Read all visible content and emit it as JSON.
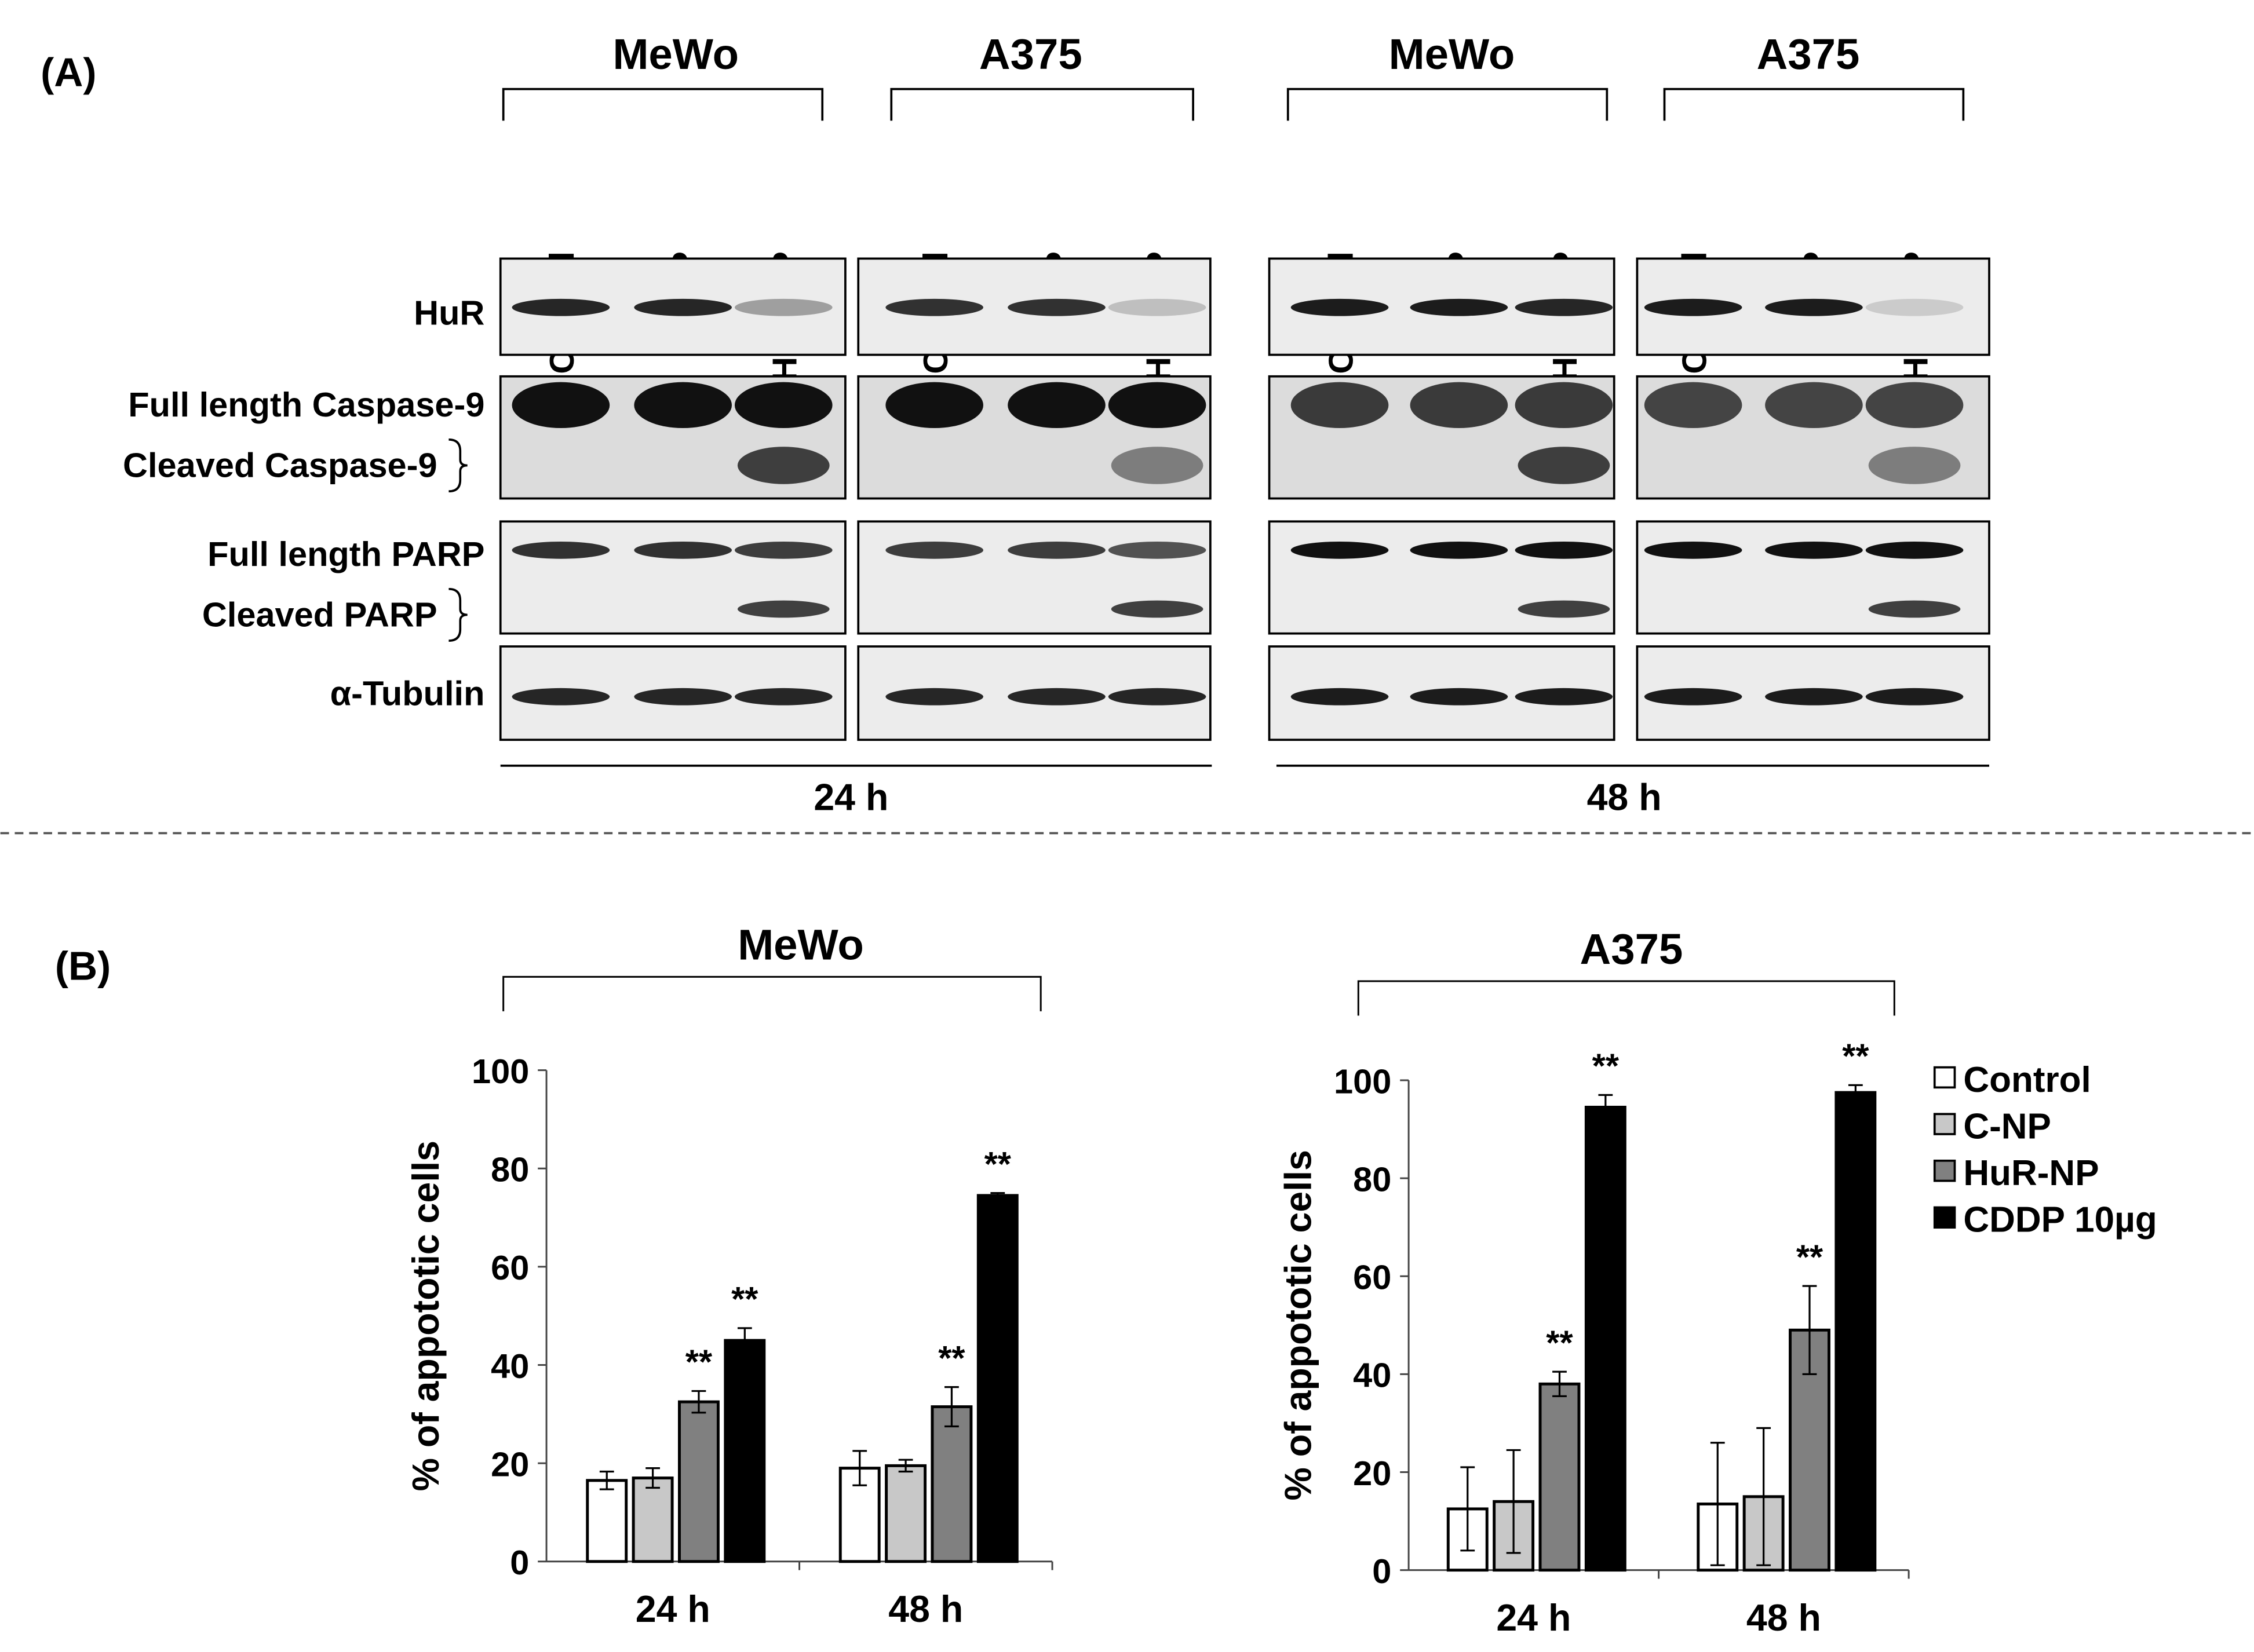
{
  "panel_a": {
    "label": "(A)",
    "groups": [
      "MeWo",
      "A375",
      "MeWo",
      "A375"
    ],
    "lanes": [
      [
        "Control",
        "C-NP",
        "HuR-NP"
      ],
      [
        "Control",
        "C-NP",
        "HuR-NP"
      ],
      [
        "Control",
        "C-NP",
        "HuR-NP"
      ],
      [
        "Control",
        "C-NP",
        "HuR-NP"
      ]
    ],
    "rows": [
      "HuR",
      "Full length Caspase-9",
      "Cleaved Caspase-9",
      "Full length PARP",
      "Cleaved PARP",
      "α-Tubulin"
    ],
    "times": [
      "24 h",
      "48 h"
    ]
  },
  "panel_b": {
    "label": "(B)"
  },
  "chart_data": [
    {
      "type": "bar",
      "title": "MeWo",
      "ylabel": "% of appototic cells",
      "categories": [
        "24 h",
        "48 h"
      ],
      "series": [
        {
          "name": "Control",
          "color": "#ffffff",
          "values": [
            16.5,
            19
          ],
          "errors": [
            1.8,
            3.5
          ]
        },
        {
          "name": "C-NP",
          "color": "#c8c8c8",
          "values": [
            17,
            19.5
          ],
          "errors": [
            2,
            1.2
          ]
        },
        {
          "name": "HuR-NP",
          "color": "#808080",
          "values": [
            32.5,
            31.5
          ],
          "errors": [
            2.2,
            4
          ],
          "significance": [
            "**",
            "**"
          ]
        },
        {
          "name": "CDDP 10µg",
          "color": "#000000",
          "values": [
            45,
            74.5
          ],
          "errors": [
            2.5,
            0.5
          ],
          "significance": [
            "**",
            "**"
          ]
        }
      ],
      "ylim": [
        0,
        100
      ],
      "yticks": [
        0,
        20,
        40,
        60,
        80,
        100
      ]
    },
    {
      "type": "bar",
      "title": "A375",
      "ylabel": "% of appototic cells",
      "categories": [
        "24 h",
        "48 h"
      ],
      "series": [
        {
          "name": "Control",
          "color": "#ffffff",
          "values": [
            12.5,
            13.5
          ],
          "errors": [
            8.5,
            12.5
          ]
        },
        {
          "name": "C-NP",
          "color": "#c8c8c8",
          "values": [
            14,
            15
          ],
          "errors": [
            10.5,
            14
          ]
        },
        {
          "name": "HuR-NP",
          "color": "#808080",
          "values": [
            38,
            49
          ],
          "errors": [
            2.5,
            9
          ],
          "significance": [
            "**",
            "**"
          ]
        },
        {
          "name": "CDDP 10µg",
          "color": "#000000",
          "values": [
            94.5,
            97.5
          ],
          "errors": [
            2.5,
            1.5
          ],
          "significance": [
            "**",
            "**"
          ]
        }
      ],
      "ylim": [
        0,
        100
      ],
      "yticks": [
        0,
        20,
        40,
        60,
        80,
        100
      ],
      "legend": "right"
    }
  ]
}
